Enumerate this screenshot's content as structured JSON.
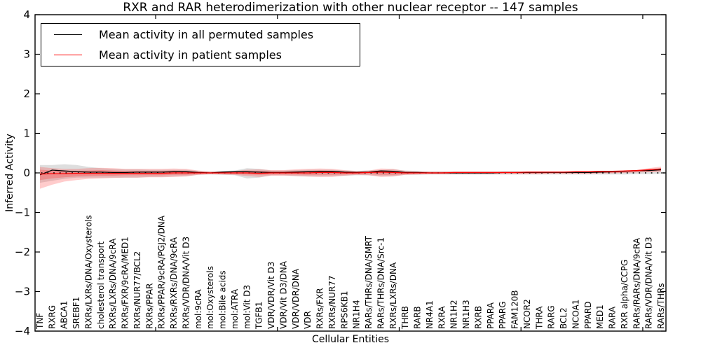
{
  "figure": {
    "title": "RXR and RAR heterodimerization with other nuclear receptor -- 147 samples",
    "xlabel": "Cellular Entities",
    "ylabel": "Inferred Activity"
  },
  "legend": {
    "entries": [
      {
        "label": "Mean activity in all permuted samples",
        "color": "#000000"
      },
      {
        "label": "Mean activity in patient samples",
        "color": "#ff0000"
      }
    ]
  },
  "chart_data": {
    "type": "line",
    "title": "RXR and RAR heterodimerization with other nuclear receptor -- 147 samples",
    "xlabel": "Cellular Entities",
    "ylabel": "Inferred Activity",
    "ylim": [
      -4,
      4
    ],
    "ytick_values": [
      4,
      3,
      2,
      1,
      0,
      -1,
      -2,
      -3,
      -4
    ],
    "ytick_labels": [
      "4",
      "3",
      "2",
      "1",
      "0",
      "−1",
      "−2",
      "−3",
      "−4"
    ],
    "grid": false,
    "legend_position": "upper left",
    "zero_line": {
      "y": 0,
      "style": "dotted",
      "color": "#000000"
    },
    "categories": [
      "TNF",
      "RXRG",
      "ABCA1",
      "SREBF1",
      "RXRs/LXRs/DNA/Oxysterols",
      "cholesterol transport",
      "RXRs/LXRs/DNA/9cRA",
      "RXRs/FXR/9cRA/MED1",
      "RXRs/NUR77/BCL2",
      "RXRs/PPAR",
      "RXRs/PPAR/9cRA/PGJ2/DNA",
      "RXRs/RXRs/DNA/9cRA",
      "RXRs/VDR/DNA/Vit D3",
      "mol:9cRA",
      "mol:Oxysterols",
      "mol:Bile acids",
      "mol:ATRA",
      "mol:Vit D3",
      "TGFB1",
      "VDR/VDR/Vit D3",
      "VDR/Vit D3/DNA",
      "VDR/VDR/DNA",
      "VDR",
      "RXRs/FXR",
      "RXRs/NUR77",
      "RPS6KB1",
      "NR1H4",
      "RARs/THRs/DNA/SMRT",
      "RARs/THRs/DNA/Src-1",
      "RXRs/LXRs/DNA",
      "THRB",
      "RARB",
      "NR4A1",
      "RXRA",
      "NR1H2",
      "NR1H3",
      "RXRB",
      "PPARA",
      "PPARG",
      "FAM120B",
      "NCOR2",
      "THRA",
      "RARG",
      "BCL2",
      "NCOA1",
      "PPARD",
      "MED1",
      "RARA",
      "RXR alpha/CCPG",
      "RARs/RARs/DNA/9cRA",
      "RARs/VDR/DNA/Vit D3",
      "RARs/THRs"
    ],
    "series": [
      {
        "name": "Mean activity in all permuted samples",
        "color": "#000000",
        "values": [
          -0.05,
          0.07,
          0.05,
          0.03,
          0.02,
          0.02,
          0.01,
          0.01,
          0.02,
          0.02,
          0.02,
          0.03,
          0.03,
          0.01,
          0.0,
          0.02,
          0.03,
          0.03,
          0.02,
          0.01,
          0.01,
          0.02,
          0.03,
          0.04,
          0.04,
          0.02,
          0.01,
          0.02,
          0.05,
          0.04,
          0.01,
          0.01,
          0.0,
          0.0,
          0.0,
          0.0,
          0.0,
          0.0,
          0.01,
          0.01,
          0.01,
          0.01,
          0.01,
          0.01,
          0.01,
          0.01,
          0.02,
          0.03,
          0.04,
          0.06,
          0.06,
          0.08
        ]
      },
      {
        "name": "Mean activity in patient samples",
        "color": "#ff0000",
        "values": [
          -0.03,
          -0.02,
          -0.02,
          -0.01,
          -0.01,
          -0.01,
          -0.01,
          -0.01,
          -0.01,
          -0.01,
          -0.01,
          0.0,
          0.0,
          0.0,
          0.0,
          0.0,
          0.0,
          0.0,
          -0.01,
          0.0,
          0.0,
          0.0,
          0.0,
          0.01,
          0.01,
          0.0,
          0.0,
          0.01,
          0.02,
          0.01,
          0.0,
          0.0,
          0.0,
          0.0,
          0.01,
          0.01,
          0.01,
          0.01,
          0.01,
          0.01,
          0.02,
          0.02,
          0.02,
          0.02,
          0.03,
          0.03,
          0.04,
          0.04,
          0.05,
          0.06,
          0.08,
          0.1
        ]
      }
    ],
    "bands": [
      {
        "name": "permuted-range",
        "color": "rgba(145,145,145,0.30)",
        "upper": [
          0.2,
          0.2,
          0.22,
          0.2,
          0.15,
          0.12,
          0.1,
          0.09,
          0.09,
          0.08,
          0.08,
          0.08,
          0.08,
          0.05,
          0.04,
          0.05,
          0.06,
          0.12,
          0.1,
          0.06,
          0.06,
          0.07,
          0.08,
          0.08,
          0.08,
          0.06,
          0.05,
          0.06,
          0.08,
          0.09,
          0.06,
          0.05,
          0.04,
          0.04,
          0.04,
          0.04,
          0.04,
          0.04,
          0.04,
          0.04,
          0.04,
          0.04,
          0.04,
          0.04,
          0.04,
          0.04,
          0.04,
          0.05,
          0.05,
          0.06,
          0.07,
          0.1
        ],
        "lower": [
          -0.25,
          -0.2,
          -0.15,
          -0.12,
          -0.12,
          -0.12,
          -0.12,
          -0.12,
          -0.12,
          -0.1,
          -0.1,
          -0.09,
          -0.08,
          -0.05,
          -0.04,
          -0.05,
          -0.06,
          -0.14,
          -0.12,
          -0.06,
          -0.06,
          -0.08,
          -0.09,
          -0.09,
          -0.08,
          -0.07,
          -0.06,
          -0.06,
          -0.08,
          -0.08,
          -0.05,
          -0.05,
          -0.04,
          -0.04,
          -0.04,
          -0.04,
          -0.04,
          -0.04,
          -0.04,
          -0.04,
          -0.04,
          -0.04,
          -0.04,
          -0.04,
          -0.04,
          -0.04,
          -0.04,
          -0.04,
          -0.04,
          -0.03,
          -0.03,
          -0.02
        ]
      },
      {
        "name": "patient-range-outer",
        "color": "rgba(255,40,40,0.24)",
        "upper": [
          0.15,
          0.12,
          0.1,
          0.1,
          0.12,
          0.13,
          0.12,
          0.1,
          0.1,
          0.1,
          0.1,
          0.11,
          0.1,
          0.06,
          0.03,
          0.04,
          0.05,
          0.08,
          0.09,
          0.07,
          0.07,
          0.09,
          0.1,
          0.11,
          0.1,
          0.07,
          0.05,
          0.06,
          0.11,
          0.1,
          0.05,
          0.04,
          0.03,
          0.03,
          0.03,
          0.03,
          0.03,
          0.03,
          0.03,
          0.03,
          0.03,
          0.03,
          0.03,
          0.03,
          0.03,
          0.03,
          0.04,
          0.05,
          0.06,
          0.08,
          0.12,
          0.16
        ],
        "lower": [
          -0.4,
          -0.3,
          -0.22,
          -0.18,
          -0.15,
          -0.14,
          -0.13,
          -0.12,
          -0.12,
          -0.11,
          -0.11,
          -0.1,
          -0.09,
          -0.05,
          -0.03,
          -0.04,
          -0.05,
          -0.08,
          -0.1,
          -0.07,
          -0.07,
          -0.08,
          -0.09,
          -0.1,
          -0.1,
          -0.07,
          -0.05,
          -0.06,
          -0.1,
          -0.09,
          -0.05,
          -0.04,
          -0.03,
          -0.03,
          -0.03,
          -0.03,
          -0.03,
          -0.03,
          -0.03,
          -0.03,
          -0.03,
          -0.03,
          -0.02,
          -0.02,
          -0.02,
          -0.02,
          -0.01,
          -0.01,
          0.0,
          0.01,
          0.02,
          0.03
        ]
      },
      {
        "name": "patient-range-inner",
        "color": "rgba(255,40,40,0.28)",
        "upper": [
          0.08,
          0.06,
          0.05,
          0.05,
          0.06,
          0.07,
          0.06,
          0.05,
          0.05,
          0.05,
          0.05,
          0.06,
          0.05,
          0.03,
          0.02,
          0.02,
          0.03,
          0.04,
          0.05,
          0.04,
          0.04,
          0.05,
          0.05,
          0.06,
          0.05,
          0.04,
          0.03,
          0.03,
          0.06,
          0.05,
          0.03,
          0.02,
          0.02,
          0.02,
          0.02,
          0.02,
          0.02,
          0.02,
          0.02,
          0.02,
          0.02,
          0.02,
          0.02,
          0.02,
          0.02,
          0.03,
          0.03,
          0.04,
          0.04,
          0.05,
          0.07,
          0.1
        ],
        "lower": [
          -0.18,
          -0.14,
          -0.11,
          -0.09,
          -0.08,
          -0.07,
          -0.07,
          -0.06,
          -0.06,
          -0.06,
          -0.06,
          -0.05,
          -0.05,
          -0.03,
          -0.02,
          -0.02,
          -0.03,
          -0.04,
          -0.05,
          -0.04,
          -0.04,
          -0.04,
          -0.05,
          -0.05,
          -0.05,
          -0.04,
          -0.03,
          -0.03,
          -0.05,
          -0.05,
          -0.03,
          -0.02,
          -0.02,
          -0.02,
          -0.02,
          -0.02,
          -0.02,
          -0.02,
          -0.02,
          -0.02,
          -0.02,
          -0.02,
          -0.01,
          -0.01,
          -0.01,
          -0.01,
          0.0,
          0.0,
          0.01,
          0.02,
          0.03,
          0.05
        ]
      }
    ]
  }
}
